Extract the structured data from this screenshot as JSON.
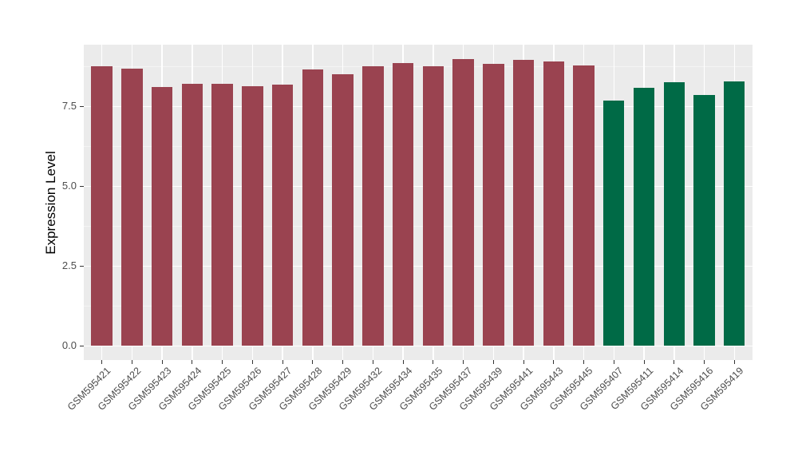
{
  "chart_data": {
    "type": "bar",
    "title": "",
    "xlabel": "",
    "ylabel": "Expression Level",
    "categories": [
      "GSM595421",
      "GSM595422",
      "GSM595423",
      "GSM595424",
      "GSM595425",
      "GSM595426",
      "GSM595427",
      "GSM595428",
      "GSM595429",
      "GSM595432",
      "GSM595434",
      "GSM595435",
      "GSM595437",
      "GSM595439",
      "GSM595441",
      "GSM595443",
      "GSM595445",
      "GSM595407",
      "GSM595411",
      "GSM595414",
      "GSM595416",
      "GSM595419"
    ],
    "values": [
      8.75,
      8.67,
      8.1,
      8.19,
      8.2,
      8.13,
      8.17,
      8.66,
      8.49,
      8.74,
      8.86,
      8.76,
      8.97,
      8.83,
      8.96,
      8.91,
      8.77,
      7.68,
      8.08,
      8.26,
      7.86,
      8.27
    ],
    "bar_colors": [
      "#9A4350",
      "#9A4350",
      "#9A4350",
      "#9A4350",
      "#9A4350",
      "#9A4350",
      "#9A4350",
      "#9A4350",
      "#9A4350",
      "#9A4350",
      "#9A4350",
      "#9A4350",
      "#9A4350",
      "#9A4350",
      "#9A4350",
      "#9A4350",
      "#9A4350",
      "#006A46",
      "#006A46",
      "#006A46",
      "#006A46",
      "#006A46"
    ],
    "group_colors": {
      "red_group": "#9A4350",
      "green_group": "#006A46"
    },
    "y_ticks": [
      {
        "value": 0.0,
        "label": "0.0"
      },
      {
        "value": 2.5,
        "label": "2.5"
      },
      {
        "value": 5.0,
        "label": "5.0"
      },
      {
        "value": 7.5,
        "label": "7.5"
      }
    ],
    "y_minor_gridlines": [
      1.25,
      3.75,
      6.25,
      8.75
    ],
    "ylim": [
      -0.45,
      9.425
    ],
    "grid": true,
    "legend": false,
    "panel_background": "#EBEBEB",
    "major_grid_color": "#FFFFFF",
    "minor_grid_color": "#F4F4F4",
    "tick_color": "#333333",
    "axis_text_color": "#4D4D4D",
    "axis_title_color": "#000000"
  }
}
